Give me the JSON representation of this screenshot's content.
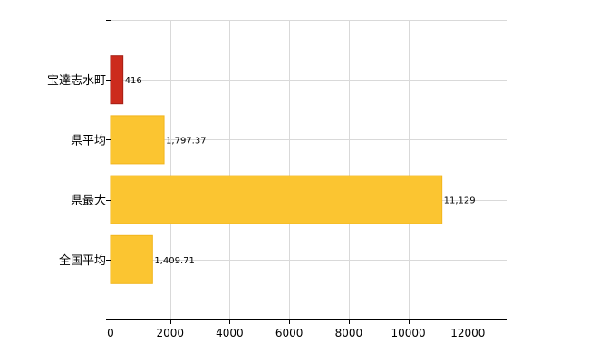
{
  "chart_data": {
    "type": "bar",
    "orientation": "horizontal",
    "title": "",
    "xlabel": "",
    "ylabel": "",
    "categories": [
      "宝達志水町",
      "県平均",
      "県最大",
      "全国平均"
    ],
    "values": [
      416,
      1797.37,
      11129,
      1409.71
    ],
    "value_labels": [
      "416",
      "1,797.37",
      "11,129",
      "1,409.71"
    ],
    "bar_colors": [
      "#cc2b1d",
      "#fbc531",
      "#fbc531",
      "#fbc531"
    ],
    "bar_stroke_colors": [
      "#a51f14",
      "#f2b51c",
      "#f2b51c",
      "#f2b51c"
    ],
    "xlim": [
      0,
      13300
    ],
    "x_ticks": [
      0,
      2000,
      4000,
      6000,
      8000,
      10000,
      12000
    ],
    "x_tick_labels": [
      "0",
      "2000",
      "4000",
      "6000",
      "8000",
      "10000",
      "12000"
    ],
    "grid": true,
    "grid_color": "#d9d9d9",
    "axis_color": "#000000",
    "legend": "none"
  }
}
